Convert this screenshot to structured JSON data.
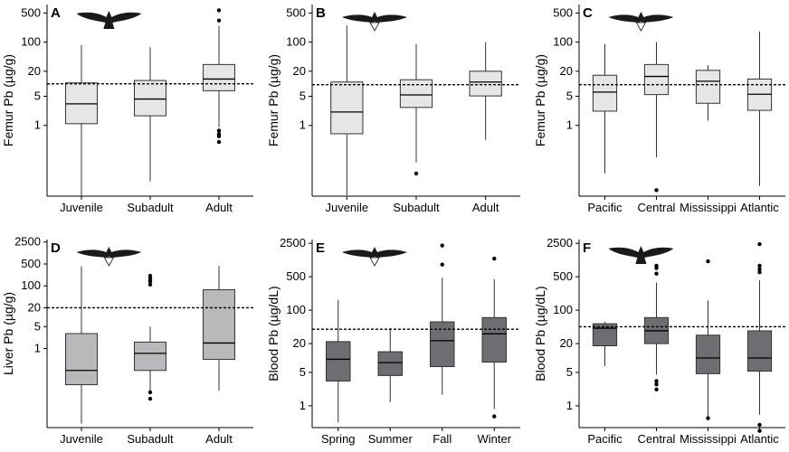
{
  "chart_data": [
    {
      "panel": "A",
      "type": "box",
      "ylabel": "Femur Pb (µg/g)",
      "yscale": "log",
      "ylim": [
        0.02,
        800
      ],
      "yticks": [
        "1",
        "5",
        "20",
        "100",
        "500"
      ],
      "categories": [
        "Juvenile",
        "Subadult",
        "Adult"
      ],
      "box_fill": "#e6e6e6",
      "threshold": 10,
      "bird": "spread",
      "boxes": [
        {
          "min": 0.02,
          "q1": 1.1,
          "median": 3.3,
          "q3": 10.5,
          "max": 85,
          "outliers": []
        },
        {
          "min": 0.045,
          "q1": 1.7,
          "median": 4.3,
          "q3": 12,
          "max": 75,
          "outliers": []
        },
        {
          "min": 0.9,
          "q1": 6.8,
          "median": 13,
          "q3": 29,
          "max": 245,
          "outliers": [
            580,
            330,
            0.75,
            0.62,
            0.55,
            0.4
          ]
        }
      ]
    },
    {
      "panel": "B",
      "type": "box",
      "ylabel": "Femur Pb (µg/g)",
      "yscale": "log",
      "ylim": [
        0.02,
        800
      ],
      "yticks": [
        "1",
        "5",
        "20",
        "100",
        "500"
      ],
      "categories": [
        "Juvenile",
        "Subadult",
        "Adult"
      ],
      "box_fill": "#e6e6e6",
      "threshold": 9.5,
      "bird": "glide",
      "boxes": [
        {
          "min": 0.021,
          "q1": 0.63,
          "median": 2.1,
          "q3": 11,
          "max": 250,
          "outliers": []
        },
        {
          "min": 0.13,
          "q1": 2.7,
          "median": 5.4,
          "q3": 12.5,
          "max": 90,
          "outliers": [
            0.07
          ]
        },
        {
          "min": 0.45,
          "q1": 5.1,
          "median": 11,
          "q3": 20,
          "max": 100,
          "outliers": []
        }
      ]
    },
    {
      "panel": "C",
      "type": "box",
      "ylabel": "Femur Pb (µg/g)",
      "yscale": "log",
      "ylim": [
        0.02,
        800
      ],
      "yticks": [
        "1",
        "5",
        "20",
        "100",
        "500"
      ],
      "categories": [
        "Pacific",
        "Central",
        "Mississippi",
        "Atlantic"
      ],
      "box_fill": "#e6e6e6",
      "threshold": 9.5,
      "bird": "glide",
      "boxes": [
        {
          "min": 0.07,
          "q1": 2.2,
          "median": 6.3,
          "q3": 16,
          "max": 90,
          "outliers": []
        },
        {
          "min": 0.17,
          "q1": 5.5,
          "median": 15,
          "q3": 29,
          "max": 100,
          "outliers": [
            0.028
          ]
        },
        {
          "min": 1.3,
          "q1": 3.4,
          "median": 11.5,
          "q3": 21,
          "max": 28,
          "outliers": []
        },
        {
          "min": 0.035,
          "q1": 2.3,
          "median": 5.6,
          "q3": 13,
          "max": 180,
          "outliers": []
        }
      ]
    },
    {
      "panel": "D",
      "type": "box",
      "ylabel": "Liver Pb (µg/g)",
      "yscale": "log",
      "ylim": [
        0.003,
        3000
      ],
      "yticks": [
        "1",
        "5",
        "20",
        "100",
        "500",
        "2500"
      ],
      "categories": [
        "Juvenile",
        "Subadult",
        "Adult"
      ],
      "box_fill": "#b9b9bb",
      "threshold": 20,
      "bird": "glide",
      "boxes": [
        {
          "min": 0.004,
          "q1": 0.07,
          "median": 0.2,
          "q3": 3,
          "max": 420,
          "outliers": []
        },
        {
          "min": 0.04,
          "q1": 0.2,
          "median": 0.7,
          "q3": 1.6,
          "max": 5,
          "outliers": [
            110,
            140,
            170,
            210,
            0.04,
            0.025
          ]
        },
        {
          "min": 0.045,
          "q1": 0.45,
          "median": 1.5,
          "q3": 75,
          "max": 430,
          "outliers": []
        }
      ]
    },
    {
      "panel": "E",
      "type": "box",
      "ylabel": "Blood Pb (µg/dL)",
      "yscale": "log",
      "ylim": [
        0.35,
        3000
      ],
      "yticks": [
        "1",
        "5",
        "20",
        "100",
        "500",
        "2500"
      ],
      "categories": [
        "Spring",
        "Summer",
        "Fall",
        "Winter"
      ],
      "box_fill": "#6d6d72",
      "threshold": 40,
      "bird": "glide",
      "boxes": [
        {
          "min": 0.45,
          "q1": 3.3,
          "median": 9.4,
          "q3": 22,
          "max": 165,
          "outliers": []
        },
        {
          "min": 1.2,
          "q1": 4.3,
          "median": 8,
          "q3": 13.5,
          "max": 42,
          "outliers": []
        },
        {
          "min": 1.7,
          "q1": 6.6,
          "median": 23,
          "q3": 57,
          "max": 475,
          "outliers": [
            2250,
            900
          ]
        },
        {
          "min": 0.85,
          "q1": 8.2,
          "median": 32,
          "q3": 70,
          "max": 450,
          "outliers": [
            1200,
            0.6
          ]
        }
      ]
    },
    {
      "panel": "F",
      "type": "box",
      "ylabel": "Blood Pb (µg/dL)",
      "yscale": "log",
      "ylim": [
        0.35,
        3000
      ],
      "yticks": [
        "1",
        "5",
        "20",
        "100",
        "500",
        "2500"
      ],
      "categories": [
        "Pacific",
        "Central",
        "Mississippi",
        "Atlantic"
      ],
      "box_fill": "#6d6d72",
      "threshold": 45,
      "bird": "spread",
      "boxes": [
        {
          "min": 6.8,
          "q1": 18,
          "median": 42,
          "q3": 52,
          "max": 57,
          "outliers": []
        },
        {
          "min": 4.5,
          "q1": 20,
          "median": 37,
          "q3": 70,
          "max": 380,
          "outliers": [
            580,
            760,
            850,
            3.3,
            2.8,
            2.2
          ]
        },
        {
          "min": 0.6,
          "q1": 4.7,
          "median": 10,
          "q3": 30,
          "max": 160,
          "outliers": [
            1050,
            0.55
          ]
        },
        {
          "min": 0.65,
          "q1": 5.3,
          "median": 10,
          "q3": 37,
          "max": 420,
          "outliers": [
            2400,
            850,
            720,
            620,
            0.4,
            0.3
          ]
        }
      ]
    }
  ]
}
